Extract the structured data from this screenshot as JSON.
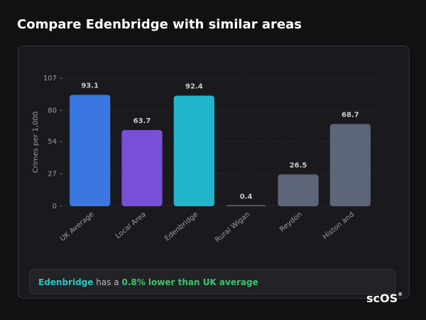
{
  "header": {
    "title": "Compare Edenbridge with similar areas"
  },
  "chart_data": {
    "type": "bar",
    "y_label": "Crimes per 1,000",
    "categories": [
      "UK Average",
      "Local Area",
      "Edenbridge",
      "Rural Wigan",
      "Reydon",
      "Histon and"
    ],
    "values": [
      93.1,
      63.7,
      92.4,
      0.4,
      26.5,
      68.7
    ],
    "colors": [
      "#3a77e0",
      "#7a4fd8",
      "#22b6cc",
      "#5d6678",
      "#5d6678",
      "#5d6678"
    ],
    "ylim": [
      0,
      107
    ],
    "yticks": [
      0,
      27,
      54,
      80,
      107
    ],
    "grid": true
  },
  "summary": {
    "area": "Edenbridge",
    "middle": "has a",
    "comparison": "0.8% lower than UK average"
  },
  "logo": {
    "text": "scOS",
    "mark": "®"
  }
}
